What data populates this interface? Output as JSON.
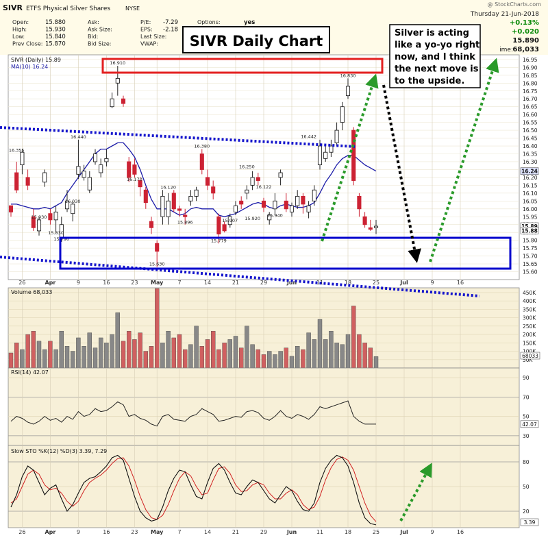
{
  "header": {
    "symbol": "SIVR",
    "name": "ETFS Physical Silver Shares",
    "exchange": "NYSE",
    "copyright": "@ StockCharts.com",
    "date": "Thursday  21-Jun-2018",
    "change_pct": "+0.13%",
    "change": "+0.020",
    "last": "15.890",
    "volume_label": "ime:",
    "volume": "68,033",
    "fields": [
      {
        "label": "Open:",
        "value": "15.880"
      },
      {
        "label": "High:",
        "value": "15.930"
      },
      {
        "label": "Low:",
        "value": "15.840"
      },
      {
        "label": "Prev Close:",
        "value": "15.870"
      }
    ],
    "fields2": [
      {
        "label": "Ask:",
        "value": ""
      },
      {
        "label": "Ask Size:",
        "value": ""
      },
      {
        "label": "Bid:",
        "value": ""
      },
      {
        "label": "Bid Size:",
        "value": ""
      }
    ],
    "fields3": [
      {
        "label": "P/E:",
        "value": "-7.29"
      },
      {
        "label": "EPS:",
        "value": "-2.18"
      },
      {
        "label": "Last Size:",
        "value": ""
      },
      {
        "label": "VWAP:",
        "value": ""
      }
    ],
    "options_label": "Options:",
    "options_value": "yes"
  },
  "annotations": {
    "title": "SIVR Daily Chart",
    "comment": [
      "Silver is acting",
      "like a yo-yo right",
      "now, and I think",
      "the next move is",
      "to the upside."
    ]
  },
  "colors": {
    "up": "#222222",
    "down": "#cc2233",
    "ma": "#1a1aa8",
    "volume_up": "#888888",
    "volume_down": "#d06060",
    "panel_bg": "#f7f0d8",
    "main_bg": "#ffffff",
    "dotted_blue": "#1515cc",
    "green": "#2a9a2a",
    "red_box": "#e32020",
    "blue_box": "#0000cc"
  },
  "chart_data": [
    {
      "type": "candlestick",
      "title": "SIVR (Daily) 15.89",
      "legend": [
        "SIVR (Daily) 15.89",
        "MA(10) 16.24"
      ],
      "ylim": [
        15.55,
        16.98
      ],
      "yticks": [
        15.6,
        15.65,
        15.7,
        15.75,
        15.8,
        15.85,
        15.9,
        15.95,
        16.0,
        16.05,
        16.1,
        16.15,
        16.2,
        16.25,
        16.3,
        16.35,
        16.4,
        16.45,
        16.5,
        16.55,
        16.6,
        16.65,
        16.7,
        16.75,
        16.8,
        16.85,
        16.9,
        16.95
      ],
      "last_tags": [
        "16.24",
        "15.89",
        "15.88"
      ],
      "xticks": [
        "26",
        "Apr",
        "9",
        "16",
        "23",
        "May",
        "7",
        "14",
        "21",
        "29",
        "Jun",
        "11",
        "18",
        "25",
        "Jul",
        "9",
        "16"
      ],
      "candles": [
        [
          16.02,
          15.98,
          16.0,
          15.95
        ],
        [
          16.23,
          16.12,
          16.3,
          16.1
        ],
        [
          16.28,
          16.36,
          16.38,
          16.22
        ],
        [
          16.2,
          16.15,
          16.25,
          16.12
        ],
        [
          15.95,
          15.88,
          16.0,
          15.86
        ],
        [
          15.86,
          15.93,
          15.95,
          15.83
        ],
        [
          16.17,
          16.23,
          16.25,
          16.14
        ],
        [
          15.97,
          15.93,
          16.0,
          15.9
        ],
        [
          15.93,
          15.98,
          16.02,
          15.85
        ],
        [
          15.82,
          15.9,
          15.95,
          15.79
        ],
        [
          16.0,
          16.05,
          16.12,
          15.98
        ],
        [
          15.97,
          16.03,
          16.05,
          15.92
        ],
        [
          16.22,
          16.27,
          16.44,
          16.19
        ],
        [
          16.2,
          16.24,
          16.28,
          16.18
        ],
        [
          16.12,
          16.2,
          16.24,
          16.1
        ],
        [
          16.3,
          16.35,
          16.38,
          16.28
        ],
        [
          16.23,
          16.28,
          16.32,
          16.2
        ],
        [
          16.3,
          16.32,
          16.38,
          16.27
        ],
        [
          16.65,
          16.7,
          16.74,
          16.64
        ],
        [
          16.8,
          16.83,
          16.91,
          16.72
        ],
        [
          16.7,
          16.67,
          16.72,
          16.65
        ],
        [
          16.3,
          16.2,
          16.33,
          16.17
        ],
        [
          16.28,
          16.22,
          16.32,
          16.2
        ],
        [
          16.18,
          16.14,
          16.2,
          16.08
        ],
        [
          16.12,
          16.04,
          16.14,
          16.0
        ],
        [
          15.92,
          15.88,
          15.95,
          15.84
        ],
        [
          15.78,
          15.73,
          15.8,
          15.63
        ],
        [
          15.95,
          16.08,
          16.12,
          15.9
        ],
        [
          15.95,
          16.05,
          16.1,
          15.9
        ],
        [
          16.1,
          16.0,
          16.12,
          15.98
        ],
        [
          16.0,
          15.99,
          16.02,
          15.95
        ],
        [
          15.96,
          15.95,
          16.0,
          15.9
        ],
        [
          16.05,
          16.08,
          16.12,
          16.02
        ],
        [
          16.08,
          16.12,
          16.14,
          16.05
        ],
        [
          16.35,
          16.25,
          16.38,
          16.22
        ],
        [
          16.2,
          16.15,
          16.25,
          16.12
        ],
        [
          16.14,
          16.1,
          16.18,
          16.06
        ],
        [
          15.95,
          15.84,
          15.97,
          15.78
        ],
        [
          15.9,
          15.86,
          15.92,
          15.85
        ],
        [
          15.9,
          15.95,
          15.97,
          15.88
        ],
        [
          15.98,
          16.02,
          16.05,
          15.96
        ],
        [
          16.05,
          16.03,
          16.08,
          16.0
        ],
        [
          16.1,
          16.12,
          16.15,
          16.06
        ],
        [
          16.15,
          16.2,
          16.24,
          16.12
        ],
        [
          16.2,
          16.18,
          16.23,
          16.15
        ],
        [
          16.05,
          16.01,
          16.07,
          15.98
        ],
        [
          15.93,
          15.96,
          15.98,
          15.9
        ],
        [
          16.0,
          16.05,
          16.1,
          15.96
        ],
        [
          16.2,
          16.23,
          16.25,
          16.15
        ],
        [
          16.05,
          16.0,
          16.1,
          15.98
        ],
        [
          15.98,
          16.02,
          16.04,
          15.95
        ],
        [
          16.02,
          16.08,
          16.12,
          16.0
        ],
        [
          16.08,
          16.03,
          16.1,
          15.97
        ],
        [
          15.98,
          16.02,
          16.05,
          15.94
        ],
        [
          16.05,
          16.12,
          16.15,
          16.02
        ],
        [
          16.28,
          16.4,
          16.44,
          16.25
        ],
        [
          16.32,
          16.36,
          16.4,
          16.3
        ],
        [
          16.36,
          16.4,
          16.44,
          16.33
        ],
        [
          16.42,
          16.5,
          16.55,
          16.4
        ],
        [
          16.55,
          16.65,
          16.68,
          16.5
        ],
        [
          16.72,
          16.78,
          16.83,
          16.7
        ],
        [
          16.5,
          16.18,
          16.52,
          16.15
        ],
        [
          16.08,
          16.0,
          16.1,
          15.95
        ],
        [
          15.95,
          15.9,
          15.98,
          15.88
        ],
        [
          15.88,
          15.87,
          15.93,
          15.86
        ],
        [
          15.88,
          15.89,
          15.93,
          15.84
        ]
      ],
      "ma10": [
        16.03,
        16.03,
        16.02,
        16.01,
        16.0,
        16.0,
        16.01,
        16.0,
        16.02,
        16.04,
        16.1,
        16.15,
        16.2,
        16.25,
        16.3,
        16.35,
        16.38,
        16.38,
        16.4,
        16.42,
        16.42,
        16.38,
        16.33,
        16.25,
        16.15,
        16.06,
        16.0,
        16.0,
        16.0,
        15.98,
        15.96,
        15.97,
        16.0,
        16.01,
        16.0,
        16.0,
        16.0,
        15.96,
        15.95,
        15.96,
        15.97,
        15.99,
        16.01,
        16.03,
        16.04,
        16.03,
        16.01,
        16.0,
        16.02,
        16.03,
        16.02,
        16.01,
        16.01,
        16.02,
        16.04,
        16.1,
        16.17,
        16.22,
        16.28,
        16.32,
        16.34,
        16.34,
        16.31,
        16.28,
        16.26,
        16.24
      ],
      "price_labels": [
        {
          "i": 1,
          "v": 16.355,
          "text": "16.355"
        },
        {
          "i": 5,
          "v": 15.93,
          "text": "15.930"
        },
        {
          "i": 8,
          "v": 15.83,
          "text": "15.830"
        },
        {
          "i": 9,
          "v": 15.79,
          "text": "15.790"
        },
        {
          "i": 12,
          "v": 16.44,
          "text": "16.440"
        },
        {
          "i": 11,
          "v": 16.03,
          "text": "16.030"
        },
        {
          "i": 19,
          "v": 16.91,
          "text": "16.910"
        },
        {
          "i": 22,
          "v": 16.17,
          "text": "16.170"
        },
        {
          "i": 26,
          "v": 15.63,
          "text": "15.630"
        },
        {
          "i": 28,
          "v": 16.12,
          "text": "16.120"
        },
        {
          "i": 31,
          "v": 15.896,
          "text": "15.896"
        },
        {
          "i": 34,
          "v": 16.38,
          "text": "16.380"
        },
        {
          "i": 37,
          "v": 15.779,
          "text": "15.779"
        },
        {
          "i": 39,
          "v": 15.907,
          "text": "15.907"
        },
        {
          "i": 42,
          "v": 16.25,
          "text": "16.250"
        },
        {
          "i": 43,
          "v": 15.92,
          "text": "15.920"
        },
        {
          "i": 45,
          "v": 16.122,
          "text": "16.122"
        },
        {
          "i": 47,
          "v": 15.94,
          "text": "15.940"
        },
        {
          "i": 53,
          "v": 16.442,
          "text": "16.442"
        },
        {
          "i": 60,
          "v": 16.83,
          "text": "16.830"
        }
      ]
    },
    {
      "type": "bar",
      "title": "Volume 68,033",
      "yticks": [
        50000,
        100000,
        150000,
        200000,
        250000,
        300000,
        350000,
        400000,
        450000
      ],
      "ytick_labels": [
        "50K",
        "100K",
        "150K",
        "200K",
        "250K",
        "300K",
        "350K",
        "400K",
        "450K"
      ],
      "last_tag": "68033",
      "ylim": [
        0,
        470000
      ],
      "values": [
        90000,
        150000,
        110000,
        200000,
        220000,
        160000,
        110000,
        160000,
        110000,
        220000,
        130000,
        100000,
        180000,
        130000,
        210000,
        120000,
        180000,
        150000,
        200000,
        330000,
        160000,
        220000,
        170000,
        210000,
        100000,
        130000,
        480000,
        150000,
        220000,
        180000,
        200000,
        110000,
        140000,
        250000,
        130000,
        170000,
        220000,
        110000,
        150000,
        170000,
        190000,
        120000,
        250000,
        140000,
        110000,
        80000,
        100000,
        80000,
        100000,
        120000,
        70000,
        130000,
        110000,
        210000,
        170000,
        290000,
        170000,
        220000,
        150000,
        140000,
        200000,
        370000,
        200000,
        150000,
        120000,
        68000
      ]
    },
    {
      "type": "line",
      "title": "RSI(14) 42.07",
      "yticks": [
        30,
        50,
        70,
        90
      ],
      "last_tag": "42.07",
      "ylim": [
        20,
        100
      ],
      "values": [
        45,
        50,
        48,
        44,
        42,
        45,
        50,
        46,
        48,
        44,
        50,
        47,
        55,
        50,
        52,
        58,
        55,
        56,
        60,
        65,
        62,
        50,
        52,
        48,
        46,
        42,
        40,
        50,
        52,
        47,
        46,
        45,
        50,
        52,
        58,
        55,
        52,
        45,
        46,
        48,
        50,
        49,
        55,
        56,
        54,
        48,
        46,
        50,
        56,
        50,
        48,
        52,
        50,
        47,
        52,
        60,
        58,
        60,
        62,
        64,
        66,
        50,
        45,
        42,
        42,
        42
      ]
    },
    {
      "type": "line",
      "title": "Slow STO %K(12) %D(3) 3.39, 7.29",
      "legend": [
        "%K(12) 3.39",
        "%D(3) 7.29"
      ],
      "yticks": [
        20,
        50,
        80
      ],
      "last_tag": "3.39",
      "ylim": [
        0,
        100
      ],
      "k": [
        25,
        40,
        62,
        75,
        70,
        55,
        40,
        48,
        52,
        35,
        20,
        28,
        42,
        55,
        60,
        62,
        68,
        75,
        85,
        88,
        82,
        60,
        38,
        20,
        12,
        8,
        10,
        25,
        45,
        60,
        70,
        68,
        52,
        38,
        35,
        55,
        72,
        78,
        70,
        55,
        42,
        40,
        50,
        58,
        55,
        45,
        35,
        30,
        40,
        50,
        45,
        32,
        22,
        20,
        30,
        55,
        72,
        82,
        88,
        85,
        75,
        55,
        30,
        12,
        5,
        3.39
      ],
      "d": [
        30,
        35,
        50,
        65,
        70,
        65,
        52,
        46,
        48,
        42,
        32,
        26,
        32,
        45,
        55,
        60,
        64,
        70,
        78,
        84,
        85,
        75,
        58,
        38,
        22,
        12,
        10,
        15,
        28,
        45,
        60,
        68,
        63,
        50,
        40,
        42,
        58,
        72,
        74,
        66,
        52,
        44,
        45,
        52,
        55,
        52,
        42,
        35,
        35,
        42,
        46,
        40,
        28,
        22,
        25,
        38,
        58,
        73,
        83,
        86,
        82,
        70,
        50,
        30,
        15,
        7.29
      ]
    }
  ]
}
